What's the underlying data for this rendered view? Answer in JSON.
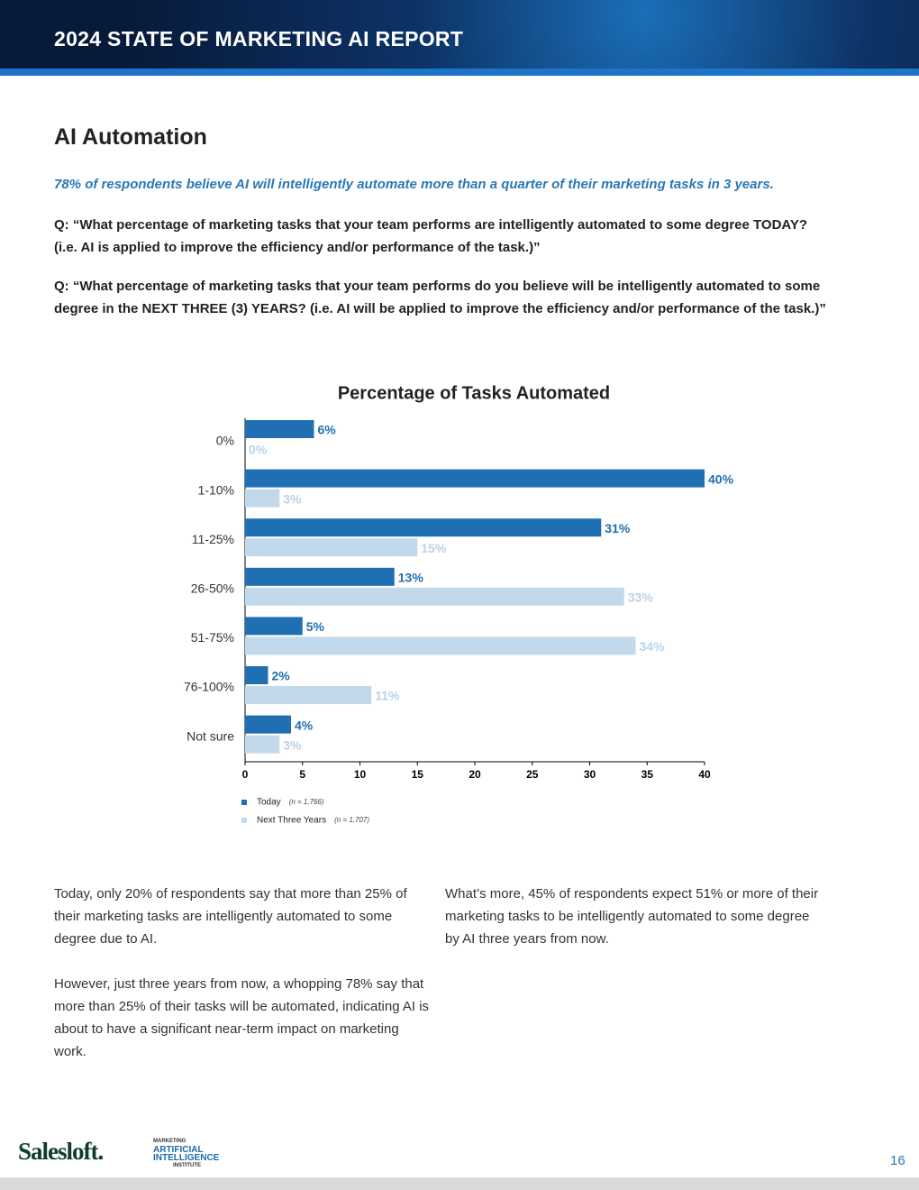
{
  "header": {
    "title": "2024 STATE OF MARKETING AI REPORT"
  },
  "section": {
    "title": "AI Automation",
    "highlight": "78% of respondents believe AI will intelligently automate more than a quarter of their marketing tasks in 3 years.",
    "questions": [
      "Q: “What percentage of marketing tasks that your team performs are intelligently automated to some degree TODAY? (i.e. AI is applied to improve the efficiency and/or performance of the task.)”",
      "Q: “What percentage of marketing tasks that your team performs do you believe will be intelligently automated to some degree in the NEXT THREE (3) YEARS? (i.e. AI will be applied to improve the efficiency and/or performance of the task.)”"
    ]
  },
  "chart_data": {
    "type": "hbar",
    "title": "Percentage of Tasks Automated",
    "categories": [
      "0%",
      "1-10%",
      "11-25%",
      "26-50%",
      "51-75%",
      "76-100%",
      "Not sure"
    ],
    "series": [
      {
        "name": "Today",
        "note": "(n = 1,766)",
        "color": "#1f6fb2",
        "values": [
          6,
          40,
          31,
          13,
          5,
          2,
          4
        ],
        "value_labels": [
          "6%",
          "40%",
          "31%",
          "13%",
          "5%",
          "2%",
          "4%"
        ]
      },
      {
        "name": "Next Three Years",
        "note": "(n = 1,707)",
        "color": "#c2d9eb",
        "values": [
          0,
          3,
          15,
          33,
          34,
          11,
          3
        ],
        "value_labels": [
          "0%",
          "3%",
          "15%",
          "33%",
          "34%",
          "11%",
          "3%"
        ]
      }
    ],
    "xlim": [
      0,
      40
    ],
    "xticks": [
      0,
      5,
      10,
      15,
      20,
      25,
      30,
      35,
      40
    ]
  },
  "body": {
    "left": [
      "Today, only 20% of respondents say that more than 25% of their marketing tasks are intelligently automated to some degree due to AI.",
      "However, just three years from now, a whopping 78% say that more than 25% of their tasks will be automated, indicating AI is about to have a significant near-term impact on marketing work."
    ],
    "right": [
      "What’s more, 45% of respondents expect 51% or more of their marketing tasks to be intelligently automated to some degree by AI three years from now."
    ]
  },
  "footer": {
    "logo": "Salesloft.",
    "institute": [
      "MARKETING",
      "ARTIFICIAL",
      "INTELLIGENCE",
      "INSTITUTE"
    ],
    "page": "16"
  }
}
